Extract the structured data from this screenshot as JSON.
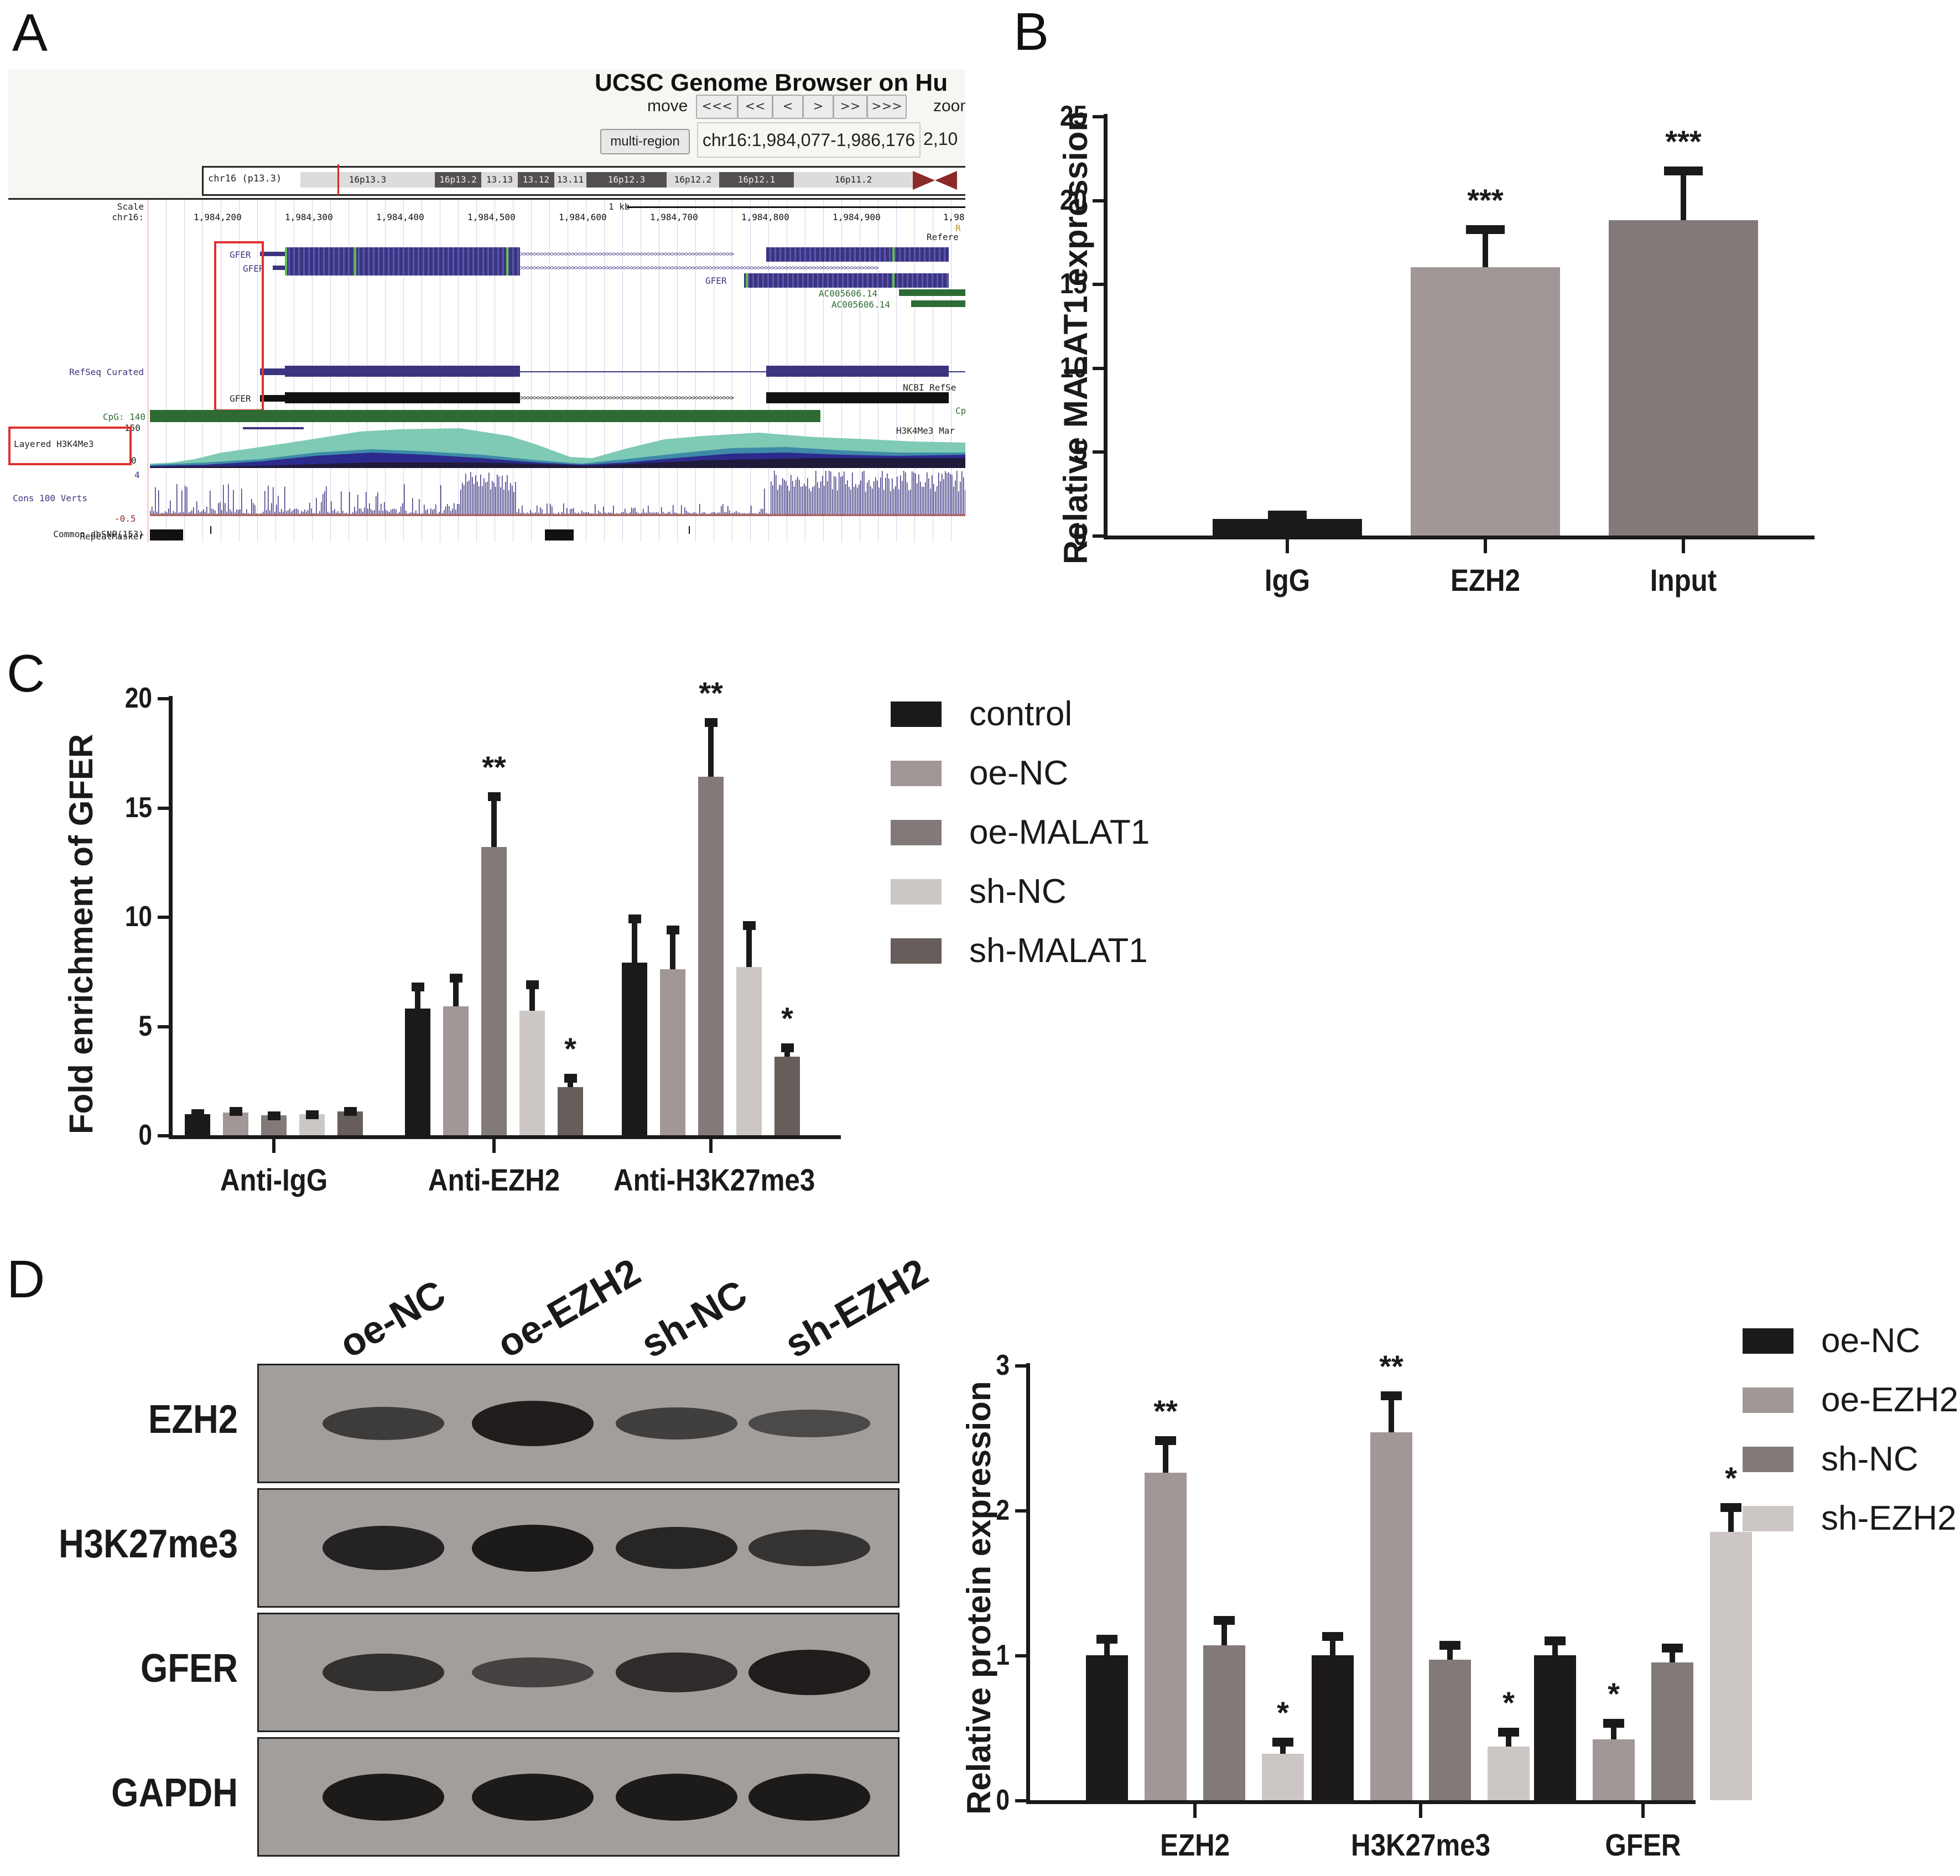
{
  "panels": {
    "a": {
      "label": "A"
    },
    "b": {
      "label": "B"
    },
    "c": {
      "label": "C"
    },
    "d": {
      "label": "D"
    }
  },
  "ucsc_browser": {
    "title": "UCSC Genome Browser on Hu",
    "move_label": "move",
    "nav_buttons": [
      "<<<",
      "<<",
      "<",
      ">",
      ">>",
      ">>>"
    ],
    "zoom_label": "zoom",
    "multi_region_button": "multi-region",
    "position_value": "chr16:1,984,077-1,986,176",
    "position_extra": "2,10",
    "ideogram": {
      "chrom_label": "chr16 (p13.3)",
      "bands": [
        "16p13.3",
        "16p13.2",
        "13.13",
        "13.12",
        "13.11",
        "16p12.3",
        "16p12.2",
        "16p12.1",
        "16p11.2"
      ]
    },
    "scale_label": "Scale",
    "scale_value": "1 kb",
    "chrom_axis_label": "chr16:",
    "coordinates": [
      "1,984,200",
      "1,984,300",
      "1,984,400",
      "1,984,500",
      "1,984,600",
      "1,984,700",
      "1,984,800",
      "1,984,900",
      "1,98"
    ],
    "tracks": {
      "gene_labels": [
        "GFER",
        "GFER",
        "GFER",
        "GFER"
      ],
      "ac_labels": [
        "AC005606.14",
        "AC005606.14"
      ],
      "refseq_curated": "RefSeq Curated",
      "ncbi_refseq": "NCBI RefSe",
      "reference_label": "Refere",
      "r_label": "R",
      "cp_label": "Cp",
      "cpg_label": "CpG: 140",
      "layered_h3k4me3": "Layered H3K4Me3",
      "h3k4me3_max": "150",
      "h3k4me3_min": "0",
      "h3k4me3_mark": "H3K4Me3 Mar",
      "cons_label": "Cons 100 Verts",
      "cons_max": "4",
      "cons_min": "-0.5",
      "dbsnp_label": "Common dbSNP(153)",
      "repeatmasker_label": "RepeatMasker"
    },
    "colors": {
      "gene": "#3b357f",
      "exon_mark": "#5ec24a",
      "cpg": "#2e6b34",
      "highlight": "#e03030",
      "h3k4_light": "#7fcab4",
      "h3k4_dark": "#201a3a"
    }
  },
  "chart_data": [
    {
      "panel": "B",
      "type": "bar",
      "title": "",
      "xlabel": "",
      "ylabel": "Relative MALAT1 expression",
      "categories": [
        "IgG",
        "EZH2",
        "Input"
      ],
      "values": [
        1.0,
        16.0,
        18.8
      ],
      "error_upper": [
        1.5,
        18.5,
        22.0
      ],
      "significance": [
        "",
        "***",
        "***"
      ],
      "colors": [
        "#1c1919",
        "#a19796",
        "#827a79"
      ],
      "yticks": [
        "0",
        "5",
        "10",
        "15",
        "20",
        "25"
      ],
      "ylim": [
        0,
        25
      ],
      "grid": false
    },
    {
      "panel": "C",
      "type": "bar",
      "title": "",
      "xlabel": "",
      "ylabel": "Fold enrichment of GFER",
      "categories": [
        "Anti-IgG",
        "Anti-EZH2",
        "Anti-H3K27me3"
      ],
      "series": [
        {
          "name": "control",
          "color": "#1c1919",
          "values": [
            0.95,
            5.8,
            7.9
          ],
          "error_upper": [
            1.2,
            7.0,
            10.1
          ],
          "significance": [
            "",
            "",
            ""
          ]
        },
        {
          "name": "oe-NC",
          "color": "#a19796",
          "values": [
            1.05,
            5.9,
            7.6
          ],
          "error_upper": [
            1.3,
            7.4,
            9.6
          ],
          "significance": [
            "",
            "",
            ""
          ]
        },
        {
          "name": "oe-MALAT1",
          "color": "#827a79",
          "values": [
            0.9,
            13.2,
            16.4
          ],
          "error_upper": [
            1.1,
            15.7,
            19.1
          ],
          "significance": [
            "",
            "**",
            "**"
          ]
        },
        {
          "name": "sh-NC",
          "color": "#ccc7c4",
          "values": [
            0.95,
            5.7,
            7.7
          ],
          "error_upper": [
            1.15,
            7.1,
            9.8
          ],
          "significance": [
            "",
            "",
            ""
          ]
        },
        {
          "name": "sh-MALAT1",
          "color": "#675e5b",
          "values": [
            1.1,
            2.2,
            3.6
          ],
          "error_upper": [
            1.3,
            2.8,
            4.2
          ],
          "significance": [
            "",
            "*",
            "*"
          ]
        }
      ],
      "yticks": [
        "0",
        "5",
        "10",
        "15",
        "20"
      ],
      "ylim": [
        0,
        20
      ],
      "legend_position": "right",
      "grid": false
    },
    {
      "panel": "D",
      "type": "bar",
      "title": "",
      "xlabel": "",
      "ylabel": "Relative protein expression",
      "categories": [
        "EZH2",
        "H3K27me3",
        "GFER"
      ],
      "series": [
        {
          "name": "oe-NC",
          "color": "#1c1919",
          "values": [
            1.0,
            1.0,
            1.0
          ],
          "error_upper": [
            1.14,
            1.16,
            1.13
          ],
          "significance": [
            "",
            "",
            ""
          ]
        },
        {
          "name": "oe-EZH2",
          "color": "#a19796",
          "values": [
            2.26,
            2.54,
            0.42
          ],
          "error_upper": [
            2.51,
            2.82,
            0.56
          ],
          "significance": [
            "**",
            "**",
            "*"
          ]
        },
        {
          "name": "sh-NC",
          "color": "#827a79",
          "values": [
            1.07,
            0.97,
            0.95
          ],
          "error_upper": [
            1.27,
            1.1,
            1.08
          ],
          "significance": [
            "",
            "",
            ""
          ]
        },
        {
          "name": "sh-EZH2",
          "color": "#ccc7c4",
          "values": [
            0.32,
            0.37,
            1.85
          ],
          "error_upper": [
            0.43,
            0.5,
            2.05
          ],
          "significance": [
            "*",
            "*",
            "*"
          ]
        }
      ],
      "yticks": [
        "0",
        "1",
        "2",
        "3"
      ],
      "ylim": [
        0,
        3
      ],
      "legend_position": "right",
      "grid": false
    }
  ],
  "western_blot": {
    "lanes": [
      "oe-NC",
      "oe-EZH2",
      "sh-NC",
      "sh-EZH2"
    ],
    "rows": [
      {
        "label": "EZH2",
        "intensity": [
          0.55,
          0.95,
          0.5,
          0.35
        ]
      },
      {
        "label": "H3K27me3",
        "intensity": [
          0.9,
          1.0,
          0.85,
          0.65
        ]
      },
      {
        "label": "GFER",
        "intensity": [
          0.7,
          0.45,
          0.75,
          0.95
        ]
      },
      {
        "label": "GAPDH",
        "intensity": [
          1.0,
          1.0,
          1.0,
          1.0
        ]
      }
    ]
  }
}
